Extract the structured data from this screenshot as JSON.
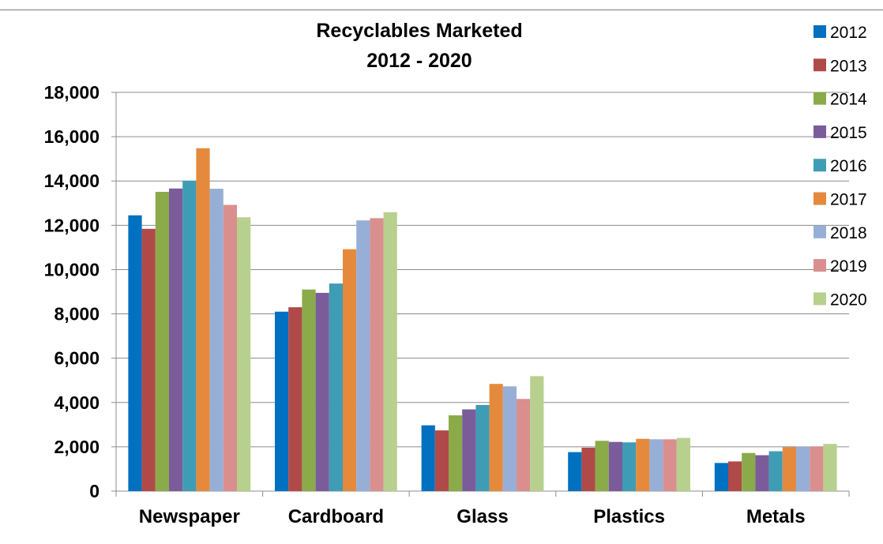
{
  "chart_data": {
    "type": "bar",
    "title_lines": [
      "Recyclables Marketed",
      "2012 - 2020"
    ],
    "xlabel": "",
    "ylabel": "",
    "categories": [
      "Newspaper",
      "Cardboard",
      "Glass",
      "Plastics",
      "Metals"
    ],
    "ylim": [
      0,
      18000
    ],
    "yticks": [
      0,
      2000,
      4000,
      6000,
      8000,
      10000,
      12000,
      14000,
      16000,
      18000
    ],
    "ytick_labels": [
      "0",
      "2,000",
      "4,000",
      "6,000",
      "8,000",
      "10,000",
      "12,000",
      "14,000",
      "16,000",
      "18,000"
    ],
    "grid": true,
    "legend_position": "right",
    "series": [
      {
        "name": "2012",
        "color": "#0070C0",
        "values": [
          12450,
          8100,
          2970,
          1760,
          1270
        ]
      },
      {
        "name": "2013",
        "color": "#B04A48",
        "values": [
          11840,
          8300,
          2740,
          1960,
          1340
        ]
      },
      {
        "name": "2014",
        "color": "#8BAA4A",
        "values": [
          13510,
          9100,
          3420,
          2270,
          1720
        ]
      },
      {
        "name": "2015",
        "color": "#7A5C9A",
        "values": [
          13660,
          8950,
          3690,
          2220,
          1620
        ]
      },
      {
        "name": "2016",
        "color": "#3F9CB5",
        "values": [
          14010,
          9370,
          3890,
          2200,
          1800
        ]
      },
      {
        "name": "2017",
        "color": "#E58A3D",
        "values": [
          15480,
          10920,
          4840,
          2360,
          1980
        ]
      },
      {
        "name": "2018",
        "color": "#97AFD6",
        "values": [
          13650,
          12220,
          4730,
          2340,
          2010
        ]
      },
      {
        "name": "2019",
        "color": "#D98F8E",
        "values": [
          12920,
          12320,
          4160,
          2340,
          2010
        ]
      },
      {
        "name": "2020",
        "color": "#B7D08E",
        "values": [
          12360,
          12590,
          5190,
          2400,
          2130
        ]
      }
    ]
  }
}
